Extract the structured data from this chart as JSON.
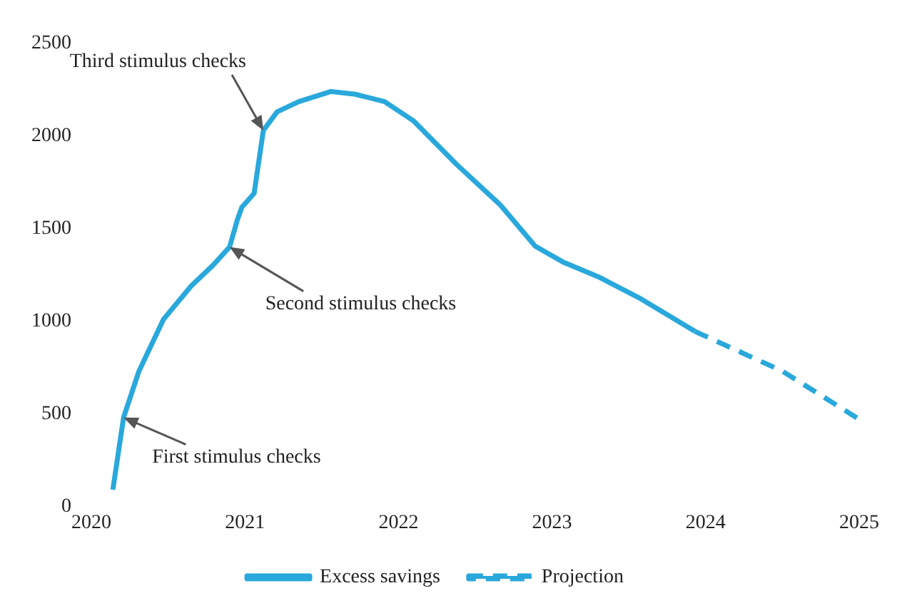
{
  "chart_data": {
    "type": "line",
    "x": [
      2020.14,
      2020.21,
      2020.31,
      2020.47,
      2020.65,
      2020.79,
      2020.9,
      2020.95,
      2020.98,
      2021.06,
      2021.12,
      2021.21,
      2021.35,
      2021.56,
      2021.72,
      2021.91,
      2022.1,
      2022.38,
      2022.66,
      2022.89,
      2023.07,
      2023.3,
      2023.58,
      2023.93
    ],
    "series": [
      {
        "name": "Excess savings",
        "color": "#29a8dc",
        "line_style": "solid",
        "values": [
          90,
          480,
          730,
          1010,
          1190,
          1300,
          1400,
          1545,
          1615,
          1690,
          2030,
          2130,
          2185,
          2240,
          2225,
          2185,
          2080,
          1845,
          1630,
          1405,
          1320,
          1240,
          1120,
          945
        ]
      },
      {
        "name": "Projection",
        "color": "#29a8dc",
        "line_style": "dashed",
        "x": [
          2023.93,
          2024.5,
          2025
        ],
        "values": [
          945,
          730,
          470
        ]
      }
    ],
    "xlim": [
      2020,
      2025
    ],
    "xticks": [
      2020,
      2021,
      2022,
      2023,
      2024,
      2025
    ],
    "ylim": [
      0,
      2500
    ],
    "yticks": [
      0,
      500,
      1000,
      1500,
      2000,
      2500
    ],
    "grid": false,
    "legend": "bottom",
    "marker": "none",
    "annotations": [
      {
        "text": "Third stimulus checks",
        "x": 2021.12,
        "y": 2030
      },
      {
        "text": "Second stimulus checks",
        "x": 2020.9,
        "y": 1400
      },
      {
        "text": "First stimulus checks",
        "x": 2020.21,
        "y": 480
      }
    ]
  }
}
